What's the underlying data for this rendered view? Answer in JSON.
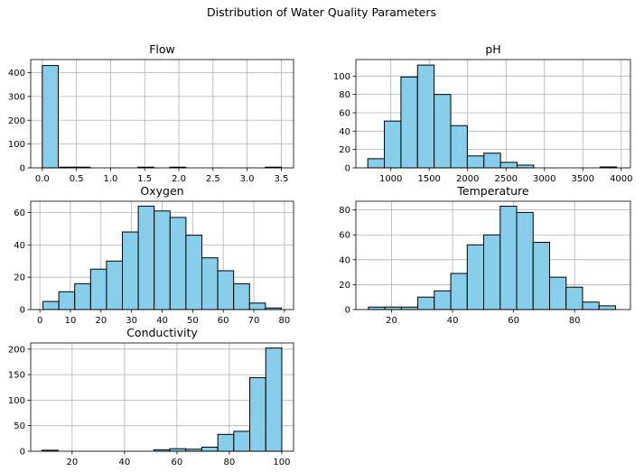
{
  "figure_title": "Distribution of Water Quality Parameters",
  "colors": {
    "bar_fill": "#87ceeb",
    "bar_edge": "#000000",
    "grid": "#b0b0b0"
  },
  "chart_data": [
    {
      "type": "bar",
      "title": "Flow",
      "grid": true,
      "xlim": [
        -0.17,
        3.68
      ],
      "ylim": [
        0,
        455
      ],
      "xticks": [
        0.0,
        0.5,
        1.0,
        1.5,
        2.0,
        2.5,
        3.0,
        3.5
      ],
      "xtick_labels": [
        "0.0",
        "0.5",
        "1.0",
        "1.5",
        "2.0",
        "2.5",
        "3.0",
        "3.5"
      ],
      "yticks": [
        0,
        100,
        200,
        300,
        400
      ],
      "ytick_labels": [
        "0",
        "100",
        "200",
        "300",
        "400"
      ],
      "bin_edges": [
        0.0,
        0.2333,
        0.4667,
        0.7,
        0.9333,
        1.1667,
        1.4,
        1.6333,
        1.8667,
        2.1,
        2.3333,
        2.5667,
        2.8,
        3.0333,
        3.2667,
        3.5
      ],
      "counts": [
        430,
        3,
        3,
        0,
        0,
        0,
        3,
        0,
        3,
        0,
        0,
        0,
        0,
        0,
        3
      ]
    },
    {
      "type": "bar",
      "title": "pH",
      "grid": true,
      "xlim": [
        545,
        4120
      ],
      "ylim": [
        0,
        118
      ],
      "xticks": [
        1000,
        1500,
        2000,
        2500,
        3000,
        3500,
        4000
      ],
      "xtick_labels": [
        "1000",
        "1500",
        "2000",
        "2500",
        "3000",
        "3500",
        "4000"
      ],
      "yticks": [
        0,
        20,
        40,
        60,
        80,
        100
      ],
      "ytick_labels": [
        "0",
        "20",
        "40",
        "60",
        "80",
        "100"
      ],
      "bin_edges": [
        700,
        916,
        1132,
        1348,
        1564,
        1780,
        1996,
        2212,
        2428,
        2644,
        2860,
        3076,
        3292,
        3508,
        3724,
        3940
      ],
      "counts": [
        10,
        51,
        99,
        112,
        80,
        46,
        13,
        16,
        6,
        3,
        0,
        0,
        0,
        0,
        1
      ]
    },
    {
      "type": "bar",
      "title": "Oxygen",
      "grid": true,
      "xlim": [
        -3,
        83
      ],
      "ylim": [
        0,
        67
      ],
      "xticks": [
        0,
        10,
        20,
        30,
        40,
        50,
        60,
        70,
        80
      ],
      "xtick_labels": [
        "0",
        "10",
        "20",
        "30",
        "40",
        "50",
        "60",
        "70",
        "80"
      ],
      "yticks": [
        0,
        20,
        40,
        60
      ],
      "ytick_labels": [
        "0",
        "20",
        "40",
        "60"
      ],
      "bin_edges": [
        1.0,
        6.2,
        11.4,
        16.6,
        21.8,
        27.0,
        32.2,
        37.4,
        42.6,
        47.8,
        53.0,
        58.2,
        63.4,
        68.6,
        73.8,
        79.0
      ],
      "counts": [
        5,
        11,
        16,
        25,
        30,
        48,
        64,
        61,
        57,
        46,
        32,
        24,
        16,
        4,
        1
      ]
    },
    {
      "type": "bar",
      "title": "Temperature",
      "grid": true,
      "xlim": [
        8.3,
        98.3
      ],
      "ylim": [
        0,
        87
      ],
      "xticks": [
        20,
        40,
        60,
        80
      ],
      "xtick_labels": [
        "20",
        "40",
        "60",
        "80"
      ],
      "yticks": [
        0,
        20,
        40,
        60,
        80
      ],
      "ytick_labels": [
        "0",
        "20",
        "40",
        "60",
        "80"
      ],
      "bin_edges": [
        12.4,
        17.8,
        23.2,
        28.6,
        34.0,
        39.4,
        44.8,
        50.2,
        55.6,
        61.0,
        66.4,
        71.8,
        77.2,
        82.6,
        88.0,
        93.4
      ],
      "counts": [
        2,
        2,
        2,
        10,
        15,
        29,
        52,
        60,
        83,
        78,
        54,
        26,
        18,
        6,
        3
      ]
    },
    {
      "type": "bar",
      "title": "Conductivity",
      "grid": true,
      "xlim": [
        4.2,
        104.5
      ],
      "ylim": [
        0,
        212
      ],
      "xticks": [
        20,
        40,
        60,
        80,
        100
      ],
      "xtick_labels": [
        "20",
        "40",
        "60",
        "80",
        "100"
      ],
      "yticks": [
        0,
        50,
        100,
        150,
        200
      ],
      "ytick_labels": [
        "0",
        "50",
        "100",
        "150",
        "200"
      ],
      "bin_edges": [
        8.5,
        14.6,
        20.7,
        26.8,
        32.9,
        39.0,
        45.1,
        51.2,
        57.3,
        63.4,
        69.5,
        75.6,
        81.7,
        87.8,
        93.9,
        100.0
      ],
      "counts": [
        2,
        0,
        0,
        0,
        0,
        0,
        0,
        3,
        5,
        4,
        8,
        33,
        39,
        144,
        202
      ]
    }
  ]
}
